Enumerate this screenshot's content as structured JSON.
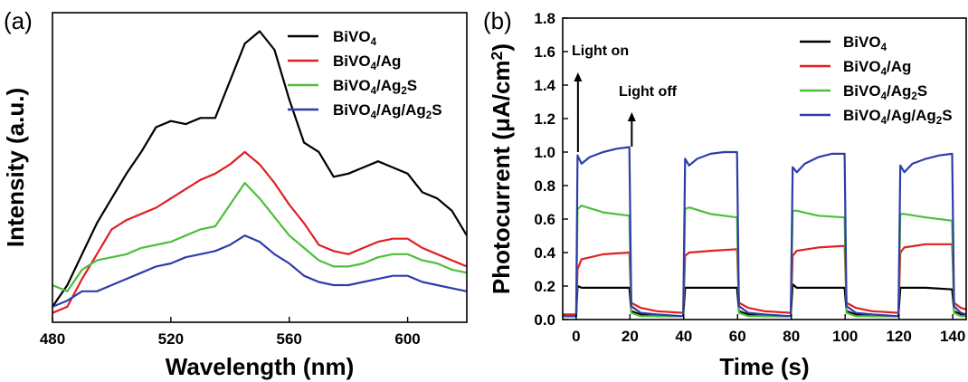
{
  "chart_data": [
    {
      "panel_label": "(a)",
      "type": "line",
      "xlabel": "Wavelength (nm)",
      "ylabel": "Intensity (a.u.)",
      "xlim": [
        480,
        620
      ],
      "ylim": [
        0,
        1
      ],
      "y_ticks_shown": false,
      "x_ticks": [
        "480",
        "520",
        "560",
        "600"
      ],
      "legend_position": "top-right",
      "series": [
        {
          "name": "BiVO₄",
          "color": "#000000",
          "x": [
            480,
            485,
            490,
            495,
            500,
            505,
            510,
            515,
            520,
            525,
            530,
            535,
            540,
            545,
            550,
            555,
            560,
            565,
            570,
            575,
            580,
            585,
            590,
            595,
            600,
            605,
            610,
            615,
            620
          ],
          "y": [
            0.05,
            0.12,
            0.22,
            0.32,
            0.4,
            0.48,
            0.55,
            0.63,
            0.65,
            0.64,
            0.66,
            0.66,
            0.78,
            0.9,
            0.94,
            0.88,
            0.72,
            0.58,
            0.55,
            0.47,
            0.48,
            0.5,
            0.52,
            0.5,
            0.48,
            0.42,
            0.4,
            0.36,
            0.28
          ]
        },
        {
          "name": "BiVO₄/Ag",
          "color": "#e02020",
          "x": [
            480,
            485,
            490,
            495,
            500,
            505,
            510,
            515,
            520,
            525,
            530,
            535,
            540,
            545,
            550,
            555,
            560,
            565,
            570,
            575,
            580,
            585,
            590,
            595,
            600,
            605,
            610,
            615,
            620
          ],
          "y": [
            0.03,
            0.05,
            0.14,
            0.22,
            0.3,
            0.33,
            0.35,
            0.37,
            0.4,
            0.43,
            0.46,
            0.48,
            0.51,
            0.55,
            0.51,
            0.45,
            0.38,
            0.32,
            0.25,
            0.23,
            0.22,
            0.24,
            0.26,
            0.27,
            0.27,
            0.24,
            0.22,
            0.2,
            0.18
          ]
        },
        {
          "name": "BiVO₄/Ag₂S",
          "color": "#4dbf3a",
          "x": [
            480,
            485,
            490,
            495,
            500,
            505,
            510,
            515,
            520,
            525,
            530,
            535,
            540,
            545,
            550,
            555,
            560,
            565,
            570,
            575,
            580,
            585,
            590,
            595,
            600,
            605,
            610,
            615,
            620
          ],
          "y": [
            0.12,
            0.1,
            0.17,
            0.2,
            0.21,
            0.22,
            0.24,
            0.25,
            0.26,
            0.28,
            0.3,
            0.31,
            0.38,
            0.45,
            0.4,
            0.34,
            0.28,
            0.24,
            0.2,
            0.18,
            0.18,
            0.19,
            0.21,
            0.22,
            0.22,
            0.2,
            0.19,
            0.17,
            0.16
          ]
        },
        {
          "name": "BiVO₄/Ag/Ag₂S",
          "color": "#2e3ea8",
          "x": [
            480,
            485,
            490,
            495,
            500,
            505,
            510,
            515,
            520,
            525,
            530,
            535,
            540,
            545,
            550,
            555,
            560,
            565,
            570,
            575,
            580,
            585,
            590,
            595,
            600,
            605,
            610,
            615,
            620
          ],
          "y": [
            0.05,
            0.07,
            0.1,
            0.1,
            0.12,
            0.14,
            0.16,
            0.18,
            0.19,
            0.21,
            0.22,
            0.23,
            0.25,
            0.28,
            0.26,
            0.22,
            0.19,
            0.15,
            0.13,
            0.12,
            0.12,
            0.13,
            0.14,
            0.15,
            0.15,
            0.13,
            0.12,
            0.11,
            0.1
          ]
        }
      ]
    },
    {
      "panel_label": "(b)",
      "type": "line",
      "xlabel": "Time (s)",
      "ylabel": "Photocurrent (μA/cm²)",
      "xlim": [
        -5,
        145
      ],
      "ylim": [
        0,
        1.8
      ],
      "x_ticks": [
        0,
        20,
        40,
        60,
        80,
        100,
        120,
        140
      ],
      "y_ticks": [
        0.0,
        0.2,
        0.4,
        0.6,
        0.8,
        1.0,
        1.2,
        1.4,
        1.6,
        1.8
      ],
      "legend_position": "top-right",
      "annotations": [
        {
          "text": "Light on",
          "x": 0
        },
        {
          "text": "Light off",
          "x": 20
        }
      ],
      "series": [
        {
          "name": "BiVO₄",
          "color": "#000000",
          "x": [
            -5,
            0,
            0.5,
            2,
            10,
            19.8,
            20.5,
            24,
            30,
            39.8,
            40.5,
            42,
            50,
            59.8,
            60.5,
            64,
            70,
            79.8,
            80.5,
            82,
            90,
            99.8,
            100.5,
            104,
            110,
            119.8,
            120.5,
            122,
            130,
            139.8,
            140.5,
            143,
            145
          ],
          "y": [
            0.02,
            0.02,
            0.2,
            0.19,
            0.19,
            0.19,
            0.05,
            0.03,
            0.02,
            0.02,
            0.19,
            0.19,
            0.19,
            0.19,
            0.05,
            0.03,
            0.02,
            0.02,
            0.21,
            0.19,
            0.19,
            0.19,
            0.05,
            0.03,
            0.02,
            0.02,
            0.19,
            0.19,
            0.19,
            0.18,
            0.05,
            0.03,
            0.02
          ]
        },
        {
          "name": "BiVO₄/Ag",
          "color": "#e02020",
          "x": [
            -5,
            0,
            0.5,
            2,
            10,
            19.8,
            20.5,
            24,
            30,
            39.8,
            40.5,
            42,
            50,
            59.8,
            60.5,
            64,
            70,
            79.8,
            80.5,
            82,
            90,
            99.8,
            100.5,
            104,
            110,
            119.8,
            120.5,
            122,
            130,
            139.8,
            140.5,
            143,
            145
          ],
          "y": [
            0.03,
            0.03,
            0.3,
            0.36,
            0.39,
            0.4,
            0.1,
            0.07,
            0.05,
            0.04,
            0.38,
            0.4,
            0.41,
            0.42,
            0.1,
            0.07,
            0.05,
            0.04,
            0.38,
            0.41,
            0.43,
            0.44,
            0.1,
            0.07,
            0.05,
            0.04,
            0.4,
            0.43,
            0.45,
            0.45,
            0.1,
            0.07,
            0.06
          ]
        },
        {
          "name": "BiVO₄/Ag₂S",
          "color": "#4dbf3a",
          "x": [
            -5,
            0,
            0.5,
            2,
            10,
            19.8,
            20.5,
            24,
            30,
            39.8,
            40.5,
            42,
            50,
            59.8,
            60.5,
            64,
            70,
            79.8,
            80.5,
            82,
            90,
            99.8,
            100.5,
            104,
            110,
            119.8,
            120.5,
            122,
            130,
            139.8,
            140.5,
            143,
            145
          ],
          "y": [
            0.02,
            0.02,
            0.66,
            0.68,
            0.64,
            0.62,
            0.04,
            0.02,
            0.02,
            0.02,
            0.66,
            0.67,
            0.63,
            0.61,
            0.04,
            0.02,
            0.02,
            0.02,
            0.65,
            0.65,
            0.62,
            0.61,
            0.04,
            0.02,
            0.02,
            0.02,
            0.63,
            0.63,
            0.61,
            0.59,
            0.04,
            0.02,
            0.02
          ]
        },
        {
          "name": "BiVO₄/Ag/Ag₂S",
          "color": "#2e3ea8",
          "x": [
            -5,
            0,
            0.5,
            2,
            5,
            10,
            15,
            19.8,
            20.5,
            24,
            30,
            39.8,
            40.5,
            42,
            45,
            50,
            55,
            59.8,
            60.5,
            64,
            70,
            79.8,
            80.5,
            82,
            85,
            90,
            95,
            99.8,
            100.5,
            104,
            110,
            119.8,
            120.5,
            122,
            125,
            130,
            135,
            139.8,
            140.5,
            143,
            145
          ],
          "y": [
            0.02,
            0.02,
            0.98,
            0.93,
            0.97,
            1.0,
            1.02,
            1.03,
            0.08,
            0.04,
            0.03,
            0.02,
            0.96,
            0.92,
            0.96,
            0.99,
            1.0,
            1.0,
            0.08,
            0.04,
            0.03,
            0.02,
            0.91,
            0.88,
            0.93,
            0.97,
            0.99,
            0.99,
            0.08,
            0.04,
            0.03,
            0.02,
            0.92,
            0.88,
            0.93,
            0.96,
            0.98,
            0.99,
            0.08,
            0.04,
            0.03
          ]
        }
      ]
    }
  ]
}
